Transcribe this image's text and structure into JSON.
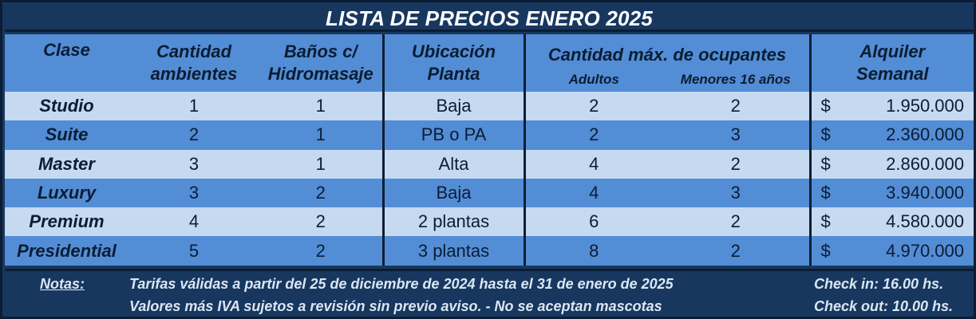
{
  "title": "LISTA DE PRECIOS ENERO 2025",
  "headers": {
    "clase": "Clase",
    "cantidad_l1": "Cantidad",
    "cantidad_l2": "ambientes",
    "banos_l1": "Baños c/",
    "banos_l2": "Hidromasaje",
    "ubicacion_l1": "Ubicación",
    "ubicacion_l2": "Planta",
    "ocupantes": "Cantidad máx. de ocupantes",
    "adultos": "Adultos",
    "menores": "Menores 16 años",
    "alquiler_l1": "Alquiler",
    "alquiler_l2": "Semanal"
  },
  "rows": [
    {
      "clase": "Studio",
      "ambientes": "1",
      "banos": "1",
      "planta": "Baja",
      "adultos": "2",
      "menores": "2",
      "currency": "$",
      "precio": "1.950.000"
    },
    {
      "clase": "Suite",
      "ambientes": "2",
      "banos": "1",
      "planta": "PB o PA",
      "adultos": "2",
      "menores": "3",
      "currency": "$",
      "precio": "2.360.000"
    },
    {
      "clase": "Master",
      "ambientes": "3",
      "banos": "1",
      "planta": "Alta",
      "adultos": "4",
      "menores": "2",
      "currency": "$",
      "precio": "2.860.000"
    },
    {
      "clase": "Luxury",
      "ambientes": "3",
      "banos": "2",
      "planta": "Baja",
      "adultos": "4",
      "menores": "3",
      "currency": "$",
      "precio": "3.940.000"
    },
    {
      "clase": "Premium",
      "ambientes": "4",
      "banos": "2",
      "planta": "2 plantas",
      "adultos": "6",
      "menores": "2",
      "currency": "$",
      "precio": "4.580.000"
    },
    {
      "clase": "Presidential",
      "ambientes": "5",
      "banos": "2",
      "planta": "3 plantas",
      "adultos": "8",
      "menores": "2",
      "currency": "$",
      "precio": "4.970.000"
    }
  ],
  "notes": {
    "label": "Notas:",
    "line1": "Tarifas válidas a partir del 25 de diciembre de 2024 hasta el 31 de enero de 2025",
    "line2": "Valores más IVA sujetos a revisión sin previo aviso. -   No se aceptan mascotas",
    "checkin": "Check in: 16.00 hs.",
    "checkout": "Check out: 10.00 hs."
  },
  "colors": {
    "frame": "#17375e",
    "header": "#538dd5",
    "row_light": "#c5d9f1",
    "row_dark": "#538dd5",
    "text_dark": "#0b1d33"
  }
}
